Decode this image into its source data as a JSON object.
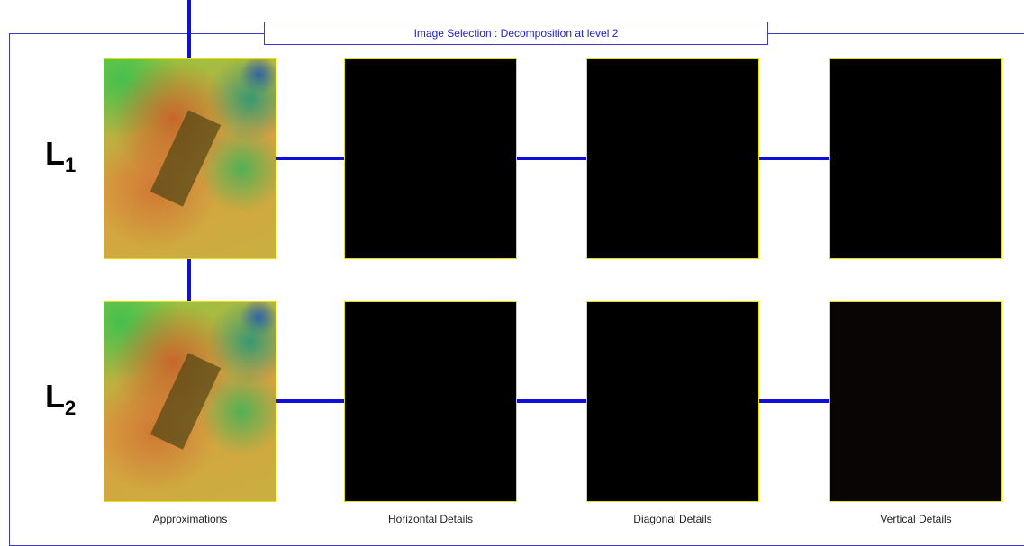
{
  "panel": {
    "title": "Image Selection : Decomposition at level 2"
  },
  "rows": [
    {
      "label": "L",
      "subscript": "1"
    },
    {
      "label": "L",
      "subscript": "2"
    }
  ],
  "columns": [
    "Approximations",
    "Horizontal Details",
    "Diagonal Details",
    "Vertical Details"
  ]
}
